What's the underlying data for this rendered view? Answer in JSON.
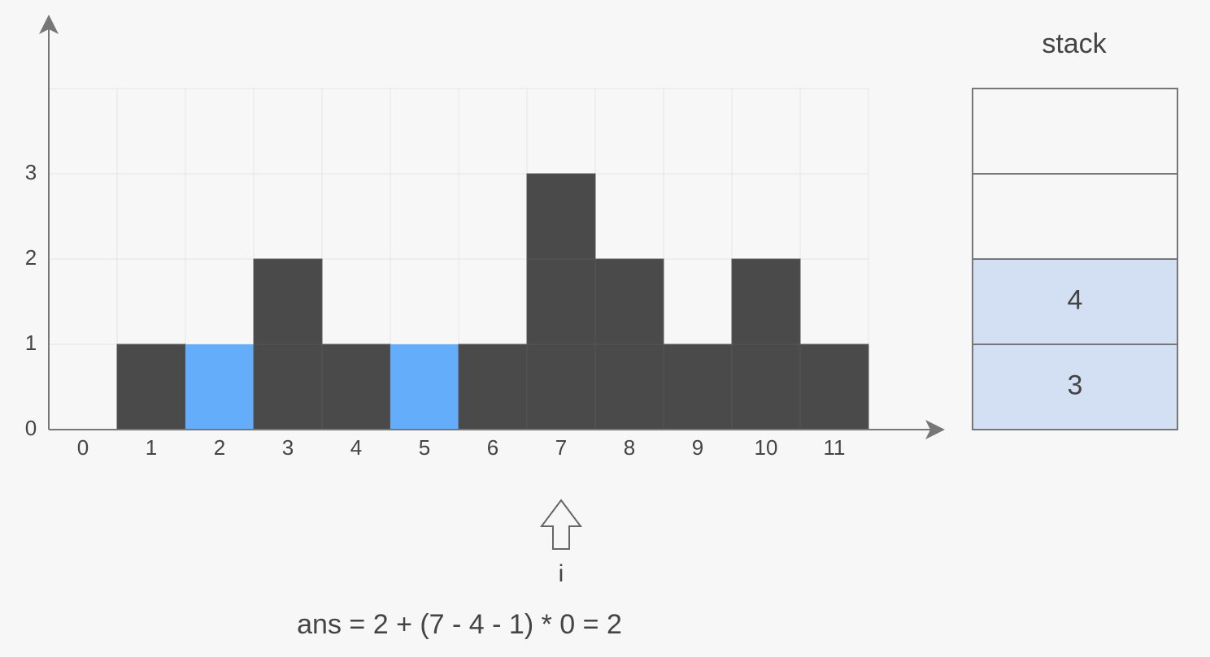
{
  "heights": [
    0,
    1,
    0,
    2,
    1,
    0,
    1,
    3,
    2,
    1,
    2,
    1
  ],
  "water": [
    0,
    0,
    1,
    0,
    0,
    1,
    0,
    0,
    0,
    0,
    0,
    0
  ],
  "x_labels": [
    0,
    1,
    2,
    3,
    4,
    5,
    6,
    7,
    8,
    9,
    10,
    11
  ],
  "y_ticks": [
    0,
    1,
    2,
    3
  ],
  "ylim": [
    0,
    4
  ],
  "stack_label": "stack",
  "stack": [
    3,
    4
  ],
  "pointer": {
    "label": "i",
    "index": 7
  },
  "formula": "ans = 2 + (7 - 4 - 1) * 0 = 2"
}
